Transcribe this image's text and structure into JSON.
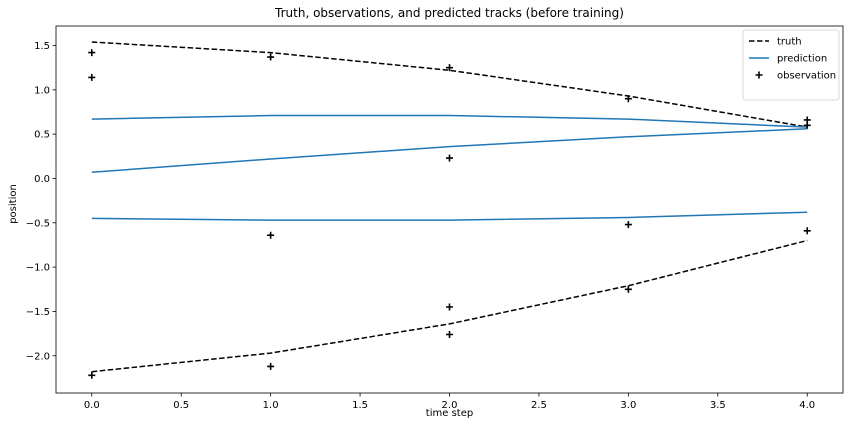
{
  "chart_data": {
    "type": "line",
    "title": "Truth, observations, and predicted tracks (before training)",
    "xlabel": "time step",
    "ylabel": "position",
    "xlim": [
      -0.2,
      4.2
    ],
    "ylim": [
      -2.42,
      1.72
    ],
    "xticks": [
      0.0,
      0.5,
      1.0,
      1.5,
      2.0,
      2.5,
      3.0,
      3.5,
      4.0
    ],
    "xtick_labels": [
      "0.0",
      "0.5",
      "1.0",
      "1.5",
      "2.0",
      "2.5",
      "3.0",
      "3.5",
      "4.0"
    ],
    "yticks": [
      1.5,
      1.0,
      0.5,
      0.0,
      -0.5,
      -1.0,
      -1.5,
      -2.0
    ],
    "ytick_labels": [
      "1.5",
      "1.0",
      "0.5",
      "0.0",
      "−0.5",
      "−1.0",
      "−1.5",
      "−2.0"
    ],
    "grid": false,
    "legend_position": "top-right",
    "legend": [
      {
        "label": "truth",
        "style": "dashed-line",
        "color": "#000000"
      },
      {
        "label": "prediction",
        "style": "solid-line",
        "color": "#1f77b4"
      },
      {
        "label": "observation",
        "style": "plus-marker",
        "color": "#000000"
      }
    ],
    "x": [
      0,
      1,
      2,
      3,
      4
    ],
    "truth_series": [
      {
        "values": [
          1.54,
          1.42,
          1.22,
          0.93,
          0.58
        ]
      },
      {
        "values": [
          -2.18,
          -1.97,
          -1.64,
          -1.21,
          -0.7
        ]
      }
    ],
    "prediction_series": [
      {
        "values": [
          0.67,
          0.71,
          0.71,
          0.67,
          0.58
        ]
      },
      {
        "values": [
          0.07,
          0.22,
          0.36,
          0.47,
          0.56
        ]
      },
      {
        "values": [
          -0.45,
          -0.47,
          -0.47,
          -0.44,
          -0.38
        ]
      }
    ],
    "observations": [
      {
        "x": 0,
        "y": 1.42
      },
      {
        "x": 0,
        "y": 1.14
      },
      {
        "x": 0,
        "y": -2.22
      },
      {
        "x": 1,
        "y": 1.37
      },
      {
        "x": 1,
        "y": -0.64
      },
      {
        "x": 1,
        "y": -2.12
      },
      {
        "x": 2,
        "y": 1.25
      },
      {
        "x": 2,
        "y": 0.23
      },
      {
        "x": 2,
        "y": -1.45
      },
      {
        "x": 2,
        "y": -1.76
      },
      {
        "x": 3,
        "y": 0.9
      },
      {
        "x": 3,
        "y": -0.52
      },
      {
        "x": 3,
        "y": -1.25
      },
      {
        "x": 4,
        "y": 0.66
      },
      {
        "x": 4,
        "y": 0.6
      },
      {
        "x": 4,
        "y": -0.59
      }
    ],
    "colors": {
      "truth": "#000000",
      "prediction": "#1f77b4",
      "observation": "#000000"
    }
  }
}
